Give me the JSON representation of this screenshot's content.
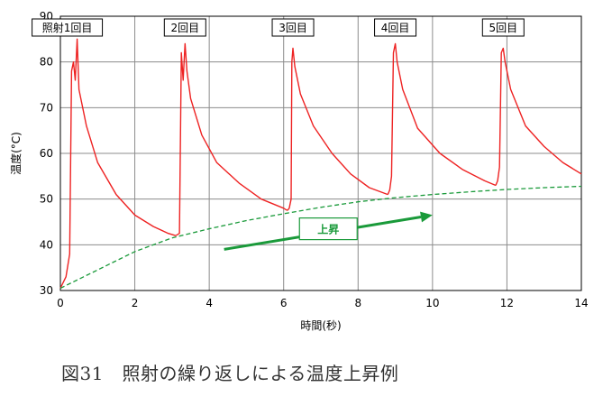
{
  "caption": "図31　照射の繰り返しによる温度上昇例",
  "chart_data": {
    "type": "line",
    "title": "",
    "xlabel": "時間(秒)",
    "ylabel": "温度(°C)",
    "xlim": [
      0,
      14
    ],
    "ylim": [
      30,
      90
    ],
    "x_ticks": [
      "0",
      "2",
      "4",
      "6",
      "8",
      "10",
      "12",
      "14"
    ],
    "y_ticks": [
      "30",
      "40",
      "50",
      "60",
      "70",
      "80",
      "90"
    ],
    "grid": true,
    "shots": [
      {
        "label": "照射1回目",
        "start": 0.25,
        "peak_time": 0.45,
        "peak": 85,
        "end_time": 3.1,
        "end_value": 42
      },
      {
        "label": "2回目",
        "start": 3.1,
        "peak_time": 3.35,
        "peak": 84,
        "end_time": 6.1,
        "end_value": 47.5
      },
      {
        "label": "3回目",
        "start": 6.1,
        "peak_time": 6.25,
        "peak": 83,
        "end_time": 8.8,
        "end_value": 51
      },
      {
        "label": "4回目",
        "start": 8.8,
        "peak_time": 9.0,
        "peak": 84,
        "end_time": 11.7,
        "end_value": 53
      },
      {
        "label": "5回目",
        "start": 11.7,
        "peak_time": 11.9,
        "peak": 83,
        "end_time": 14,
        "end_value": 55.5
      }
    ],
    "series": [
      {
        "color": "#ee2222",
        "style": "solid",
        "x": [
          0,
          0.15,
          0.25,
          0.3,
          0.35,
          0.4,
          0.45,
          0.5,
          0.7,
          1.0,
          1.5,
          2.0,
          2.5,
          2.9,
          3.1
        ],
        "y": [
          30.5,
          33,
          38,
          78,
          80,
          76,
          85,
          74,
          66,
          58,
          51,
          46.5,
          44,
          42.5,
          42
        ]
      },
      {
        "color": "#ee2222",
        "style": "solid",
        "x": [
          3.1,
          3.2,
          3.25,
          3.3,
          3.35,
          3.4,
          3.5,
          3.8,
          4.2,
          4.8,
          5.4,
          6.0,
          6.1
        ],
        "y": [
          42,
          42.5,
          82,
          76,
          84,
          78,
          72,
          64,
          58,
          53.5,
          50,
          48,
          47.5
        ]
      },
      {
        "color": "#ee2222",
        "style": "solid",
        "x": [
          6.1,
          6.15,
          6.2,
          6.22,
          6.25,
          6.3,
          6.45,
          6.8,
          7.3,
          7.8,
          8.3,
          8.8
        ],
        "y": [
          47.5,
          48,
          50,
          80,
          83,
          79,
          73,
          66,
          60,
          55.5,
          52.5,
          51
        ]
      },
      {
        "color": "#ee2222",
        "style": "solid",
        "x": [
          8.8,
          8.85,
          8.9,
          8.95,
          9.0,
          9.05,
          9.2,
          9.6,
          10.2,
          10.8,
          11.4,
          11.7
        ],
        "y": [
          51,
          52,
          55,
          82,
          84,
          80,
          74,
          65.5,
          60,
          56.5,
          54,
          53
        ]
      },
      {
        "color": "#ee2222",
        "style": "solid",
        "x": [
          11.7,
          11.75,
          11.8,
          11.85,
          11.9,
          11.95,
          12.1,
          12.5,
          13.0,
          13.5,
          14.0
        ],
        "y": [
          53,
          54,
          57,
          82,
          83,
          80,
          74,
          66,
          61.5,
          58,
          55.5
        ]
      },
      {
        "name": "上昇",
        "color": "#1a9a3a",
        "style": "dashed",
        "x": [
          0,
          1,
          2,
          3,
          4,
          5,
          6,
          7,
          8,
          9,
          10,
          11,
          12,
          13,
          14
        ],
        "y": [
          30.5,
          34.5,
          38.5,
          41.5,
          43.5,
          45.3,
          46.8,
          48.2,
          49.4,
          50.3,
          51,
          51.6,
          52.1,
          52.5,
          52.8
        ]
      }
    ],
    "annotations": [
      {
        "text": "上昇",
        "type": "arrow-label",
        "x_from": 4.4,
        "y_from": 39,
        "x_to": 10,
        "y_to": 46.5,
        "label_x": 7.2,
        "label_y": 43.5,
        "color": "#1a9a3a"
      }
    ]
  }
}
